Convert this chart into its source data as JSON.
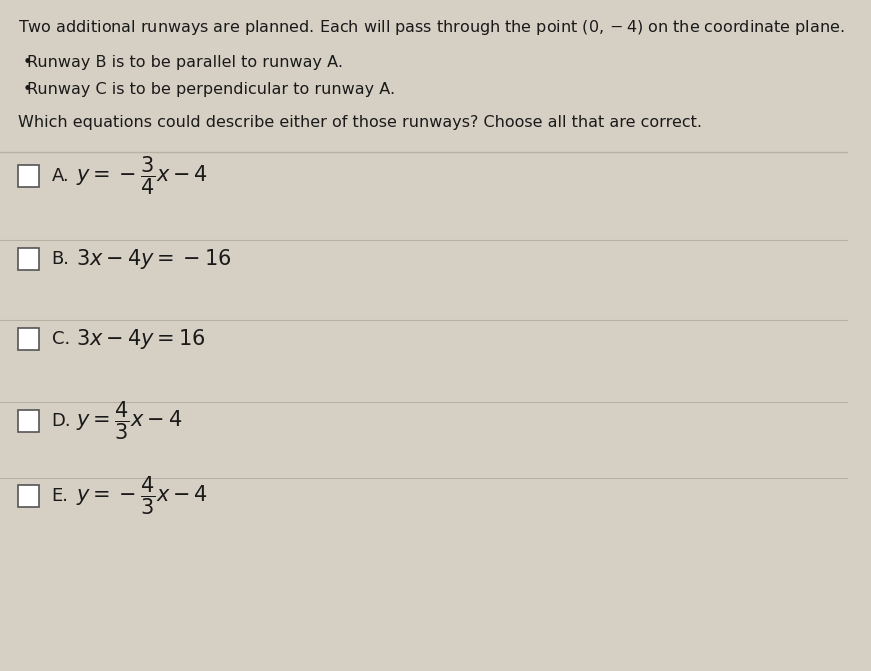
{
  "background_color": "#d6d0c4",
  "header_text": "Two additional runways are planned. Each will pass through the point $(0, -4)$ on the coordinate plane.",
  "bullet1": "Runway B is to be parallel to runway A.",
  "bullet2": "Runway C is to be perpendicular to runway A.",
  "question": "Which equations could describe either of those runways? Choose all that are correct.",
  "choices": [
    {
      "label": "A.",
      "eq_text": "$y = -\\dfrac{3}{4}x - 4$"
    },
    {
      "label": "B.",
      "eq_text": "$3x - 4y = -16$"
    },
    {
      "label": "C.",
      "eq_text": "$3x - 4y = 16$"
    },
    {
      "label": "D.",
      "eq_text": "$y = \\dfrac{4}{3}x - 4$"
    },
    {
      "label": "E.",
      "eq_text": "$y = -\\dfrac{4}{3}x - 4$"
    }
  ],
  "divider_color": "#b8b2a4",
  "text_color": "#1a1a1a",
  "checkbox_color": "#ffffff",
  "checkbox_edge_color": "#555555",
  "choice_bg_color": "#d6d0c4"
}
